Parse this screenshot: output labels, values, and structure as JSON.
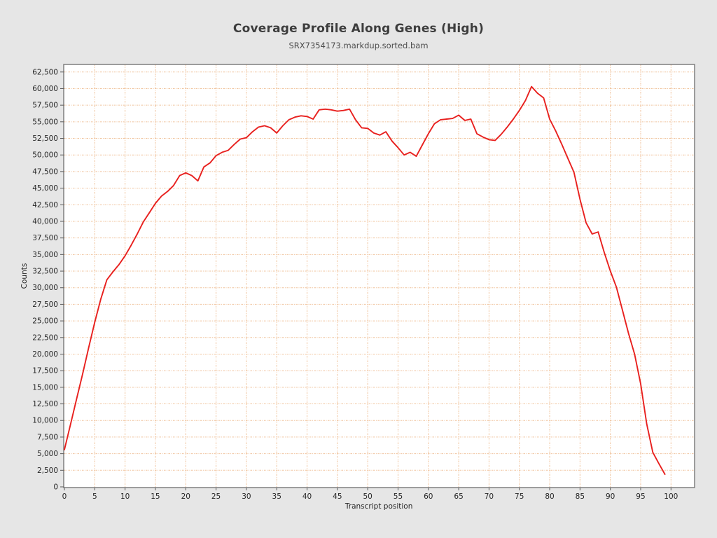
{
  "header": {
    "title": "Coverage Profile Along Genes (High)",
    "subtitle": "SRX7354173.markdup.sorted.bam"
  },
  "chart_data": {
    "type": "line",
    "title": "Coverage Profile Along Genes (High)",
    "subtitle": "SRX7354173.markdup.sorted.bam",
    "xlabel": "Transcript position",
    "ylabel": "Counts",
    "xlim": [
      0,
      104
    ],
    "ylim": [
      0,
      63600
    ],
    "grid": true,
    "grid_style": "dashed",
    "legend": false,
    "line_color": "#e8201e",
    "grid_color": "#f0c49e",
    "plot_background": "#ffffff",
    "page_background": "#e6e6e6",
    "border_color": "#7f7f7f",
    "tick_color": "#5a5a5a",
    "label_color": "#262626",
    "x_ticks": [
      0,
      5,
      10,
      15,
      20,
      25,
      30,
      35,
      40,
      45,
      50,
      55,
      60,
      65,
      70,
      75,
      80,
      85,
      90,
      95,
      100
    ],
    "x_tick_labels": [
      "0",
      "5",
      "10",
      "15",
      "20",
      "25",
      "30",
      "35",
      "40",
      "45",
      "50",
      "55",
      "60",
      "65",
      "70",
      "75",
      "80",
      "85",
      "90",
      "95",
      "100"
    ],
    "y_ticks": [
      0,
      2500,
      5000,
      7500,
      10000,
      12500,
      15000,
      17500,
      20000,
      22500,
      25000,
      27500,
      30000,
      32500,
      35000,
      37500,
      40000,
      42500,
      45000,
      47500,
      50000,
      52500,
      55000,
      57500,
      60000,
      62500
    ],
    "y_tick_labels": [
      "0",
      "2,500",
      "5,000",
      "7,500",
      "10,000",
      "12,500",
      "15,000",
      "17,500",
      "20,000",
      "22,500",
      "25,000",
      "27,500",
      "30,000",
      "32,500",
      "35,000",
      "37,500",
      "40,000",
      "42,500",
      "45,000",
      "47,500",
      "50,000",
      "52,500",
      "55,000",
      "57,500",
      "60,000",
      "62,500"
    ],
    "x": [
      0,
      1,
      2,
      3,
      4,
      5,
      6,
      7,
      8,
      9,
      10,
      11,
      12,
      13,
      14,
      15,
      16,
      17,
      18,
      19,
      20,
      21,
      22,
      23,
      24,
      25,
      26,
      27,
      28,
      29,
      30,
      31,
      32,
      33,
      34,
      35,
      36,
      37,
      38,
      39,
      40,
      41,
      42,
      43,
      44,
      45,
      46,
      47,
      48,
      49,
      50,
      51,
      52,
      53,
      54,
      55,
      56,
      57,
      58,
      59,
      60,
      61,
      62,
      63,
      64,
      65,
      66,
      67,
      68,
      69,
      70,
      71,
      72,
      73,
      74,
      75,
      76,
      77,
      78,
      79,
      80,
      81,
      82,
      83,
      84,
      85,
      86,
      87,
      88,
      89,
      90,
      91,
      92,
      93,
      94,
      95,
      96,
      97,
      98,
      99
    ],
    "y": [
      5600,
      9400,
      13200,
      17000,
      21000,
      24800,
      28300,
      31200,
      32400,
      33500,
      34800,
      36400,
      38100,
      39900,
      41300,
      42700,
      43800,
      44500,
      45400,
      46900,
      47300,
      46900,
      46100,
      48200,
      48800,
      49900,
      50400,
      50700,
      51600,
      52400,
      52600,
      53500,
      54200,
      54400,
      54100,
      53300,
      54400,
      55300,
      55700,
      55900,
      55800,
      55400,
      56800,
      56900,
      56800,
      56600,
      56700,
      56900,
      55300,
      54100,
      54000,
      53300,
      53000,
      53500,
      52100,
      51100,
      50000,
      50400,
      49800,
      51500,
      53200,
      54700,
      55300,
      55400,
      55500,
      56000,
      55200,
      55400,
      53200,
      52700,
      52300,
      52200,
      53100,
      54200,
      55400,
      56700,
      58200,
      60300,
      59300,
      58600,
      55400,
      53600,
      51600,
      49500,
      47400,
      43300,
      39800,
      38100,
      38400,
      35300,
      32500,
      30100,
      26600,
      23100,
      20000,
      15500,
      9500,
      5200,
      3500,
      1900
    ]
  }
}
